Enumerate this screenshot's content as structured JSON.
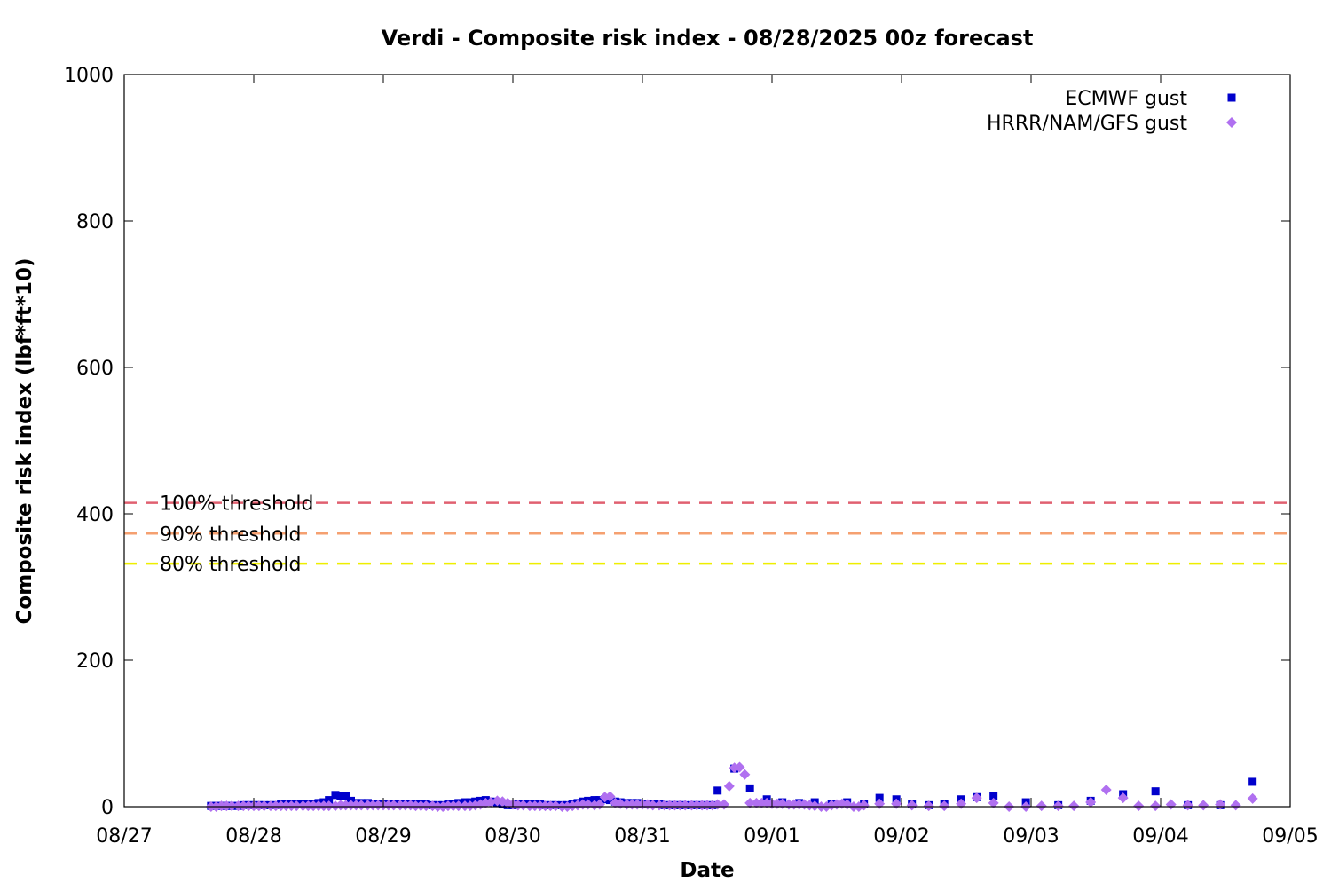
{
  "chart_data": {
    "type": "scatter",
    "title": "Verdi - Composite risk index - 08/28/2025 00z forecast",
    "xlabel": "Date",
    "ylabel": "Composite risk index (lbf*ft*10)",
    "x_unit": "days",
    "xlim": [
      0,
      9
    ],
    "ylim": [
      0,
      1000
    ],
    "x_ticks": [
      {
        "value": 0,
        "label": "08/27"
      },
      {
        "value": 1,
        "label": "08/28"
      },
      {
        "value": 2,
        "label": "08/29"
      },
      {
        "value": 3,
        "label": "08/30"
      },
      {
        "value": 4,
        "label": "08/31"
      },
      {
        "value": 5,
        "label": "09/01"
      },
      {
        "value": 6,
        "label": "09/02"
      },
      {
        "value": 7,
        "label": "09/03"
      },
      {
        "value": 8,
        "label": "09/04"
      },
      {
        "value": 9,
        "label": "09/05"
      }
    ],
    "y_ticks": [
      0,
      200,
      400,
      600,
      800,
      1000
    ],
    "grid": false,
    "legend_position": "top-right",
    "thresholds": [
      {
        "label": "100% threshold",
        "value": 415,
        "color": "#e06070"
      },
      {
        "label": "90% threshold",
        "value": 373,
        "color": "#f5a070"
      },
      {
        "label": "80% threshold",
        "value": 332,
        "color": "#eeee00"
      }
    ],
    "series": [
      {
        "name": "ECMWF gust",
        "marker": "square",
        "color": "#0000cc",
        "points": [
          [
            0.67,
            1
          ],
          [
            0.71,
            1
          ],
          [
            0.75,
            1
          ],
          [
            0.79,
            1
          ],
          [
            0.83,
            1
          ],
          [
            0.88,
            1
          ],
          [
            0.92,
            2
          ],
          [
            0.96,
            2
          ],
          [
            1.0,
            2
          ],
          [
            1.04,
            2
          ],
          [
            1.08,
            2
          ],
          [
            1.13,
            2
          ],
          [
            1.17,
            2
          ],
          [
            1.21,
            3
          ],
          [
            1.25,
            3
          ],
          [
            1.29,
            3
          ],
          [
            1.33,
            3
          ],
          [
            1.38,
            4
          ],
          [
            1.42,
            4
          ],
          [
            1.46,
            4
          ],
          [
            1.5,
            5
          ],
          [
            1.54,
            6
          ],
          [
            1.58,
            9
          ],
          [
            1.63,
            16
          ],
          [
            1.67,
            14
          ],
          [
            1.71,
            14
          ],
          [
            1.75,
            8
          ],
          [
            1.79,
            5
          ],
          [
            1.83,
            5
          ],
          [
            1.88,
            5
          ],
          [
            1.92,
            4
          ],
          [
            1.96,
            4
          ],
          [
            2.0,
            4
          ],
          [
            2.04,
            4
          ],
          [
            2.08,
            4
          ],
          [
            2.13,
            3
          ],
          [
            2.17,
            3
          ],
          [
            2.21,
            3
          ],
          [
            2.25,
            3
          ],
          [
            2.29,
            3
          ],
          [
            2.33,
            3
          ],
          [
            2.38,
            2
          ],
          [
            2.42,
            2
          ],
          [
            2.46,
            2
          ],
          [
            2.5,
            3
          ],
          [
            2.54,
            4
          ],
          [
            2.58,
            5
          ],
          [
            2.63,
            6
          ],
          [
            2.67,
            6
          ],
          [
            2.71,
            7
          ],
          [
            2.75,
            8
          ],
          [
            2.79,
            9
          ],
          [
            2.83,
            7
          ],
          [
            2.88,
            5
          ],
          [
            2.92,
            3
          ],
          [
            2.96,
            2
          ],
          [
            3.0,
            2
          ],
          [
            3.04,
            3
          ],
          [
            3.08,
            3
          ],
          [
            3.13,
            3
          ],
          [
            3.17,
            3
          ],
          [
            3.21,
            3
          ],
          [
            3.25,
            2
          ],
          [
            3.29,
            2
          ],
          [
            3.33,
            2
          ],
          [
            3.38,
            2
          ],
          [
            3.42,
            2
          ],
          [
            3.46,
            4
          ],
          [
            3.5,
            5
          ],
          [
            3.54,
            7
          ],
          [
            3.58,
            8
          ],
          [
            3.63,
            9
          ],
          [
            3.67,
            9
          ],
          [
            3.71,
            10
          ],
          [
            3.75,
            9
          ],
          [
            3.79,
            7
          ],
          [
            3.83,
            6
          ],
          [
            3.88,
            5
          ],
          [
            3.92,
            5
          ],
          [
            3.96,
            5
          ],
          [
            4.0,
            4
          ],
          [
            4.04,
            3
          ],
          [
            4.08,
            3
          ],
          [
            4.13,
            3
          ],
          [
            4.17,
            2
          ],
          [
            4.21,
            2
          ],
          [
            4.25,
            2
          ],
          [
            4.29,
            2
          ],
          [
            4.33,
            2
          ],
          [
            4.38,
            2
          ],
          [
            4.42,
            2
          ],
          [
            4.46,
            2
          ],
          [
            4.5,
            2
          ],
          [
            4.54,
            2
          ],
          [
            4.58,
            22
          ],
          [
            4.71,
            52
          ],
          [
            4.83,
            25
          ],
          [
            4.96,
            10
          ],
          [
            5.08,
            6
          ],
          [
            5.21,
            5
          ],
          [
            5.33,
            6
          ],
          [
            5.46,
            3
          ],
          [
            5.58,
            6
          ],
          [
            5.71,
            4
          ],
          [
            5.83,
            12
          ],
          [
            5.96,
            10
          ],
          [
            6.08,
            3
          ],
          [
            6.21,
            2
          ],
          [
            6.33,
            4
          ],
          [
            6.46,
            10
          ],
          [
            6.58,
            13
          ],
          [
            6.71,
            14
          ],
          [
            6.96,
            6
          ],
          [
            7.21,
            2
          ],
          [
            7.46,
            8
          ],
          [
            7.71,
            17
          ],
          [
            7.96,
            21
          ],
          [
            8.21,
            2
          ],
          [
            8.46,
            2
          ],
          [
            8.71,
            34
          ]
        ]
      },
      {
        "name": "HRRR/NAM/GFS gust",
        "marker": "diamond",
        "color": "#b070f0",
        "points": [
          [
            0.67,
            0
          ],
          [
            0.71,
            0
          ],
          [
            0.75,
            1
          ],
          [
            0.79,
            1
          ],
          [
            0.83,
            1
          ],
          [
            0.88,
            1
          ],
          [
            0.92,
            1
          ],
          [
            0.96,
            1
          ],
          [
            1.0,
            1
          ],
          [
            1.04,
            1
          ],
          [
            1.08,
            1
          ],
          [
            1.13,
            1
          ],
          [
            1.17,
            1
          ],
          [
            1.21,
            1
          ],
          [
            1.25,
            1
          ],
          [
            1.29,
            1
          ],
          [
            1.33,
            1
          ],
          [
            1.38,
            1
          ],
          [
            1.42,
            1
          ],
          [
            1.46,
            1
          ],
          [
            1.5,
            1
          ],
          [
            1.54,
            1
          ],
          [
            1.58,
            1
          ],
          [
            1.63,
            1
          ],
          [
            1.67,
            2
          ],
          [
            1.71,
            2
          ],
          [
            1.75,
            2
          ],
          [
            1.79,
            2
          ],
          [
            1.83,
            2
          ],
          [
            1.88,
            2
          ],
          [
            1.92,
            2
          ],
          [
            1.96,
            2
          ],
          [
            2.0,
            2
          ],
          [
            2.04,
            2
          ],
          [
            2.08,
            2
          ],
          [
            2.13,
            2
          ],
          [
            2.17,
            2
          ],
          [
            2.21,
            2
          ],
          [
            2.25,
            1
          ],
          [
            2.29,
            1
          ],
          [
            2.33,
            1
          ],
          [
            2.38,
            1
          ],
          [
            2.42,
            0
          ],
          [
            2.46,
            0
          ],
          [
            2.5,
            1
          ],
          [
            2.54,
            1
          ],
          [
            2.58,
            1
          ],
          [
            2.63,
            1
          ],
          [
            2.67,
            1
          ],
          [
            2.71,
            2
          ],
          [
            2.75,
            3
          ],
          [
            2.79,
            5
          ],
          [
            2.83,
            6
          ],
          [
            2.88,
            8
          ],
          [
            2.92,
            7
          ],
          [
            2.96,
            5
          ],
          [
            3.0,
            3
          ],
          [
            3.04,
            2
          ],
          [
            3.08,
            2
          ],
          [
            3.13,
            1
          ],
          [
            3.17,
            1
          ],
          [
            3.21,
            1
          ],
          [
            3.25,
            1
          ],
          [
            3.29,
            1
          ],
          [
            3.33,
            1
          ],
          [
            3.38,
            0
          ],
          [
            3.42,
            0
          ],
          [
            3.46,
            1
          ],
          [
            3.5,
            2
          ],
          [
            3.54,
            3
          ],
          [
            3.58,
            3
          ],
          [
            3.63,
            2
          ],
          [
            3.67,
            3
          ],
          [
            3.71,
            13
          ],
          [
            3.75,
            14
          ],
          [
            3.79,
            5
          ],
          [
            3.83,
            4
          ],
          [
            3.88,
            3
          ],
          [
            3.92,
            3
          ],
          [
            3.96,
            3
          ],
          [
            4.0,
            3
          ],
          [
            4.04,
            3
          ],
          [
            4.08,
            2
          ],
          [
            4.13,
            2
          ],
          [
            4.17,
            2
          ],
          [
            4.21,
            2
          ],
          [
            4.25,
            2
          ],
          [
            4.29,
            2
          ],
          [
            4.33,
            2
          ],
          [
            4.38,
            2
          ],
          [
            4.42,
            2
          ],
          [
            4.46,
            2
          ],
          [
            4.5,
            2
          ],
          [
            4.54,
            2
          ],
          [
            4.58,
            3
          ],
          [
            4.63,
            3
          ],
          [
            4.67,
            28
          ],
          [
            4.71,
            53
          ],
          [
            4.75,
            54
          ],
          [
            4.79,
            44
          ],
          [
            4.83,
            5
          ],
          [
            4.88,
            5
          ],
          [
            4.92,
            5
          ],
          [
            4.96,
            5
          ],
          [
            5.0,
            4
          ],
          [
            5.04,
            4
          ],
          [
            5.08,
            4
          ],
          [
            5.13,
            3
          ],
          [
            5.17,
            3
          ],
          [
            5.21,
            3
          ],
          [
            5.25,
            3
          ],
          [
            5.29,
            2
          ],
          [
            5.33,
            1
          ],
          [
            5.38,
            0
          ],
          [
            5.42,
            0
          ],
          [
            5.46,
            2
          ],
          [
            5.5,
            3
          ],
          [
            5.54,
            4
          ],
          [
            5.58,
            3
          ],
          [
            5.63,
            0
          ],
          [
            5.67,
            0
          ],
          [
            5.71,
            2
          ],
          [
            5.83,
            4
          ],
          [
            5.96,
            4
          ],
          [
            6.08,
            2
          ],
          [
            6.21,
            1
          ],
          [
            6.33,
            1
          ],
          [
            6.46,
            4
          ],
          [
            6.58,
            12
          ],
          [
            6.71,
            5
          ],
          [
            6.83,
            0
          ],
          [
            6.96,
            0
          ],
          [
            7.08,
            1
          ],
          [
            7.21,
            1
          ],
          [
            7.33,
            1
          ],
          [
            7.46,
            6
          ],
          [
            7.58,
            23
          ],
          [
            7.71,
            12
          ],
          [
            7.83,
            1
          ],
          [
            7.96,
            1
          ],
          [
            8.08,
            3
          ],
          [
            8.21,
            2
          ],
          [
            8.33,
            2
          ],
          [
            8.46,
            3
          ],
          [
            8.58,
            2
          ],
          [
            8.71,
            11
          ]
        ]
      }
    ]
  }
}
